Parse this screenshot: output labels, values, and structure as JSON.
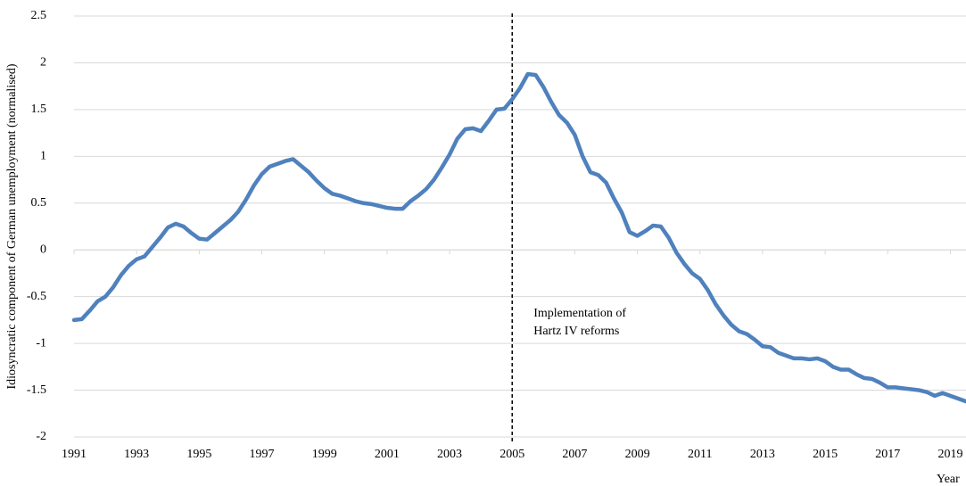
{
  "chart_data": {
    "type": "line",
    "y_label": "Idiosyncratic component of German unemployment (normalised)",
    "x_label": "Year",
    "x": [
      1991,
      1991.25,
      1991.5,
      1991.75,
      1992,
      1992.25,
      1992.5,
      1992.75,
      1993,
      1993.25,
      1993.5,
      1993.75,
      1994,
      1994.25,
      1994.5,
      1994.75,
      1995,
      1995.25,
      1995.5,
      1995.75,
      1996,
      1996.25,
      1996.5,
      1996.75,
      1997,
      1997.25,
      1997.5,
      1997.75,
      1998,
      1998.25,
      1998.5,
      1998.75,
      1999,
      1999.25,
      1999.5,
      1999.75,
      2000,
      2000.25,
      2000.5,
      2000.75,
      2001,
      2001.25,
      2001.5,
      2001.75,
      2002,
      2002.25,
      2002.5,
      2002.75,
      2003,
      2003.25,
      2003.5,
      2003.75,
      2004,
      2004.25,
      2004.5,
      2004.75,
      2005,
      2005.25,
      2005.5,
      2005.75,
      2006,
      2006.25,
      2006.5,
      2006.75,
      2007,
      2007.25,
      2007.5,
      2007.75,
      2008,
      2008.25,
      2008.5,
      2008.75,
      2009,
      2009.25,
      2009.5,
      2009.75,
      2010,
      2010.25,
      2010.5,
      2010.75,
      2011,
      2011.25,
      2011.5,
      2011.75,
      2012,
      2012.25,
      2012.5,
      2012.75,
      2013,
      2013.25,
      2013.5,
      2013.75,
      2014,
      2014.25,
      2014.5,
      2014.75,
      2015,
      2015.25,
      2015.5,
      2015.75,
      2016,
      2016.25,
      2016.5,
      2016.75,
      2017,
      2017.25,
      2017.5,
      2017.75,
      2018,
      2018.25,
      2018.5,
      2018.75,
      2019,
      2019.25,
      2019.5
    ],
    "series": [
      {
        "color": "#4f81bd",
        "values": [
          -0.75,
          -0.74,
          -0.65,
          -0.55,
          -0.5,
          -0.4,
          -0.27,
          -0.17,
          -0.1,
          -0.07,
          0.03,
          0.13,
          0.24,
          0.28,
          0.25,
          0.18,
          0.12,
          0.11,
          0.18,
          0.25,
          0.32,
          0.41,
          0.54,
          0.69,
          0.81,
          0.89,
          0.92,
          0.95,
          0.97,
          0.9,
          0.83,
          0.74,
          0.66,
          0.6,
          0.58,
          0.55,
          0.52,
          0.5,
          0.49,
          0.47,
          0.45,
          0.44,
          0.44,
          0.52,
          0.58,
          0.65,
          0.75,
          0.88,
          1.02,
          1.19,
          1.29,
          1.3,
          1.27,
          1.38,
          1.5,
          1.51,
          1.61,
          1.73,
          1.88,
          1.87,
          1.74,
          1.58,
          1.44,
          1.36,
          1.23,
          1.0,
          0.83,
          0.8,
          0.72,
          0.55,
          0.4,
          0.19,
          0.15,
          0.2,
          0.26,
          0.25,
          0.13,
          -0.03,
          -0.15,
          -0.25,
          -0.31,
          -0.43,
          -0.58,
          -0.7,
          -0.8,
          -0.87,
          -0.9,
          -0.96,
          -1.03,
          -1.04,
          -1.1,
          -1.13,
          -1.16,
          -1.16,
          -1.17,
          -1.16,
          -1.19,
          -1.25,
          -1.28,
          -1.28,
          -1.33,
          -1.37,
          -1.38,
          -1.42,
          -1.47,
          -1.47,
          -1.48,
          -1.49,
          -1.5,
          -1.52,
          -1.56,
          -1.53,
          -1.56,
          -1.59,
          -1.62
        ]
      }
    ],
    "xlim": [
      1991,
      2019.5
    ],
    "xticks": [
      1991,
      1993,
      1995,
      1997,
      1999,
      2001,
      2003,
      2005,
      2007,
      2009,
      2011,
      2013,
      2015,
      2017,
      2019
    ],
    "ylim": [
      -2,
      2.5
    ],
    "yticks": [
      -2,
      -1.5,
      -1,
      -0.5,
      0,
      0.5,
      1,
      1.5,
      2,
      2.5
    ],
    "grid": true,
    "annotations": [
      {
        "x": 2005,
        "lines": [
          "Implementation of",
          "Hartz IV reforms"
        ]
      }
    ]
  }
}
